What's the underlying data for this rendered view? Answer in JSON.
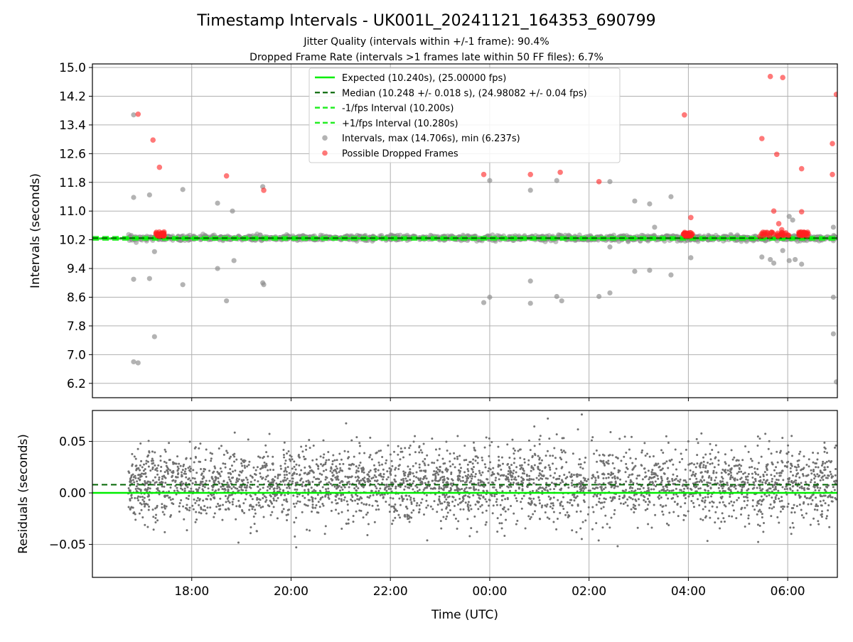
{
  "figure": {
    "title": "Timestamp Intervals - UK001L_20241121_164353_690799",
    "subtitle_1": "Jitter Quality (intervals within +/-1 frame): 90.4%",
    "subtitle_2": "Dropped Frame Rate (intervals >1 frames late within 50 FF files): 6.7%"
  },
  "colors": {
    "expected": "#00ee00",
    "median": "#006400",
    "interval_band": "#22ee22",
    "scatter": "#8a8a8a",
    "dropped": "#ff2020",
    "grid": "#b0b0b0"
  },
  "chart_data": [
    {
      "type": "scatter",
      "ylabel": "Intervals (seconds)",
      "ylim": [
        5.8,
        15.1
      ],
      "yticks": [
        6.2,
        7.0,
        7.8,
        8.6,
        9.4,
        10.2,
        11.0,
        11.8,
        12.6,
        13.4,
        14.2,
        15.0
      ],
      "xlim_hours": [
        16.0,
        31.0
      ],
      "grid": true,
      "legend_position": "upper center",
      "legend": [
        "Expected (10.240s), (25.00000 fps)",
        "Median (10.248 +/- 0.018 s), (24.98082 +/- 0.04 fps)",
        "-1/fps Interval (10.200s)",
        "+1/fps Interval (10.280s)",
        "Intervals, max (14.706s), min (6.237s)",
        "Possible Dropped Frames"
      ],
      "lines": {
        "expected": 10.24,
        "median": 10.248,
        "minus_one_fps": 10.2,
        "plus_one_fps": 10.28
      },
      "data_range_hours": [
        16.72,
        30.98
      ],
      "outliers": [
        {
          "t": 16.83,
          "v": 13.68
        },
        {
          "t": 16.83,
          "v": 11.38
        },
        {
          "t": 16.83,
          "v": 9.1
        },
        {
          "t": 16.83,
          "v": 6.8
        },
        {
          "t": 16.92,
          "v": 6.77
        },
        {
          "t": 17.15,
          "v": 11.45
        },
        {
          "t": 17.15,
          "v": 9.12
        },
        {
          "t": 17.25,
          "v": 7.5
        },
        {
          "t": 17.25,
          "v": 9.87
        },
        {
          "t": 17.82,
          "v": 11.6
        },
        {
          "t": 17.82,
          "v": 8.95
        },
        {
          "t": 18.52,
          "v": 11.22
        },
        {
          "t": 18.52,
          "v": 9.4
        },
        {
          "t": 18.7,
          "v": 8.5
        },
        {
          "t": 18.82,
          "v": 11.0
        },
        {
          "t": 18.85,
          "v": 9.62
        },
        {
          "t": 19.43,
          "v": 11.68
        },
        {
          "t": 19.43,
          "v": 9.0
        },
        {
          "t": 19.45,
          "v": 8.95
        },
        {
          "t": 23.88,
          "v": 8.45
        },
        {
          "t": 24.0,
          "v": 11.85
        },
        {
          "t": 24.0,
          "v": 8.6
        },
        {
          "t": 24.82,
          "v": 11.58
        },
        {
          "t": 24.82,
          "v": 9.05
        },
        {
          "t": 24.82,
          "v": 8.43
        },
        {
          "t": 25.35,
          "v": 11.85
        },
        {
          "t": 25.35,
          "v": 8.62
        },
        {
          "t": 25.45,
          "v": 8.5
        },
        {
          "t": 26.2,
          "v": 8.62
        },
        {
          "t": 26.42,
          "v": 11.82
        },
        {
          "t": 26.42,
          "v": 8.72
        },
        {
          "t": 26.42,
          "v": 10.0
        },
        {
          "t": 26.92,
          "v": 11.28
        },
        {
          "t": 26.92,
          "v": 9.32
        },
        {
          "t": 27.22,
          "v": 11.2
        },
        {
          "t": 27.22,
          "v": 9.35
        },
        {
          "t": 27.32,
          "v": 10.55
        },
        {
          "t": 27.65,
          "v": 11.4
        },
        {
          "t": 27.65,
          "v": 9.22
        },
        {
          "t": 28.05,
          "v": 9.7
        },
        {
          "t": 29.48,
          "v": 9.72
        },
        {
          "t": 29.65,
          "v": 9.65
        },
        {
          "t": 29.72,
          "v": 9.55
        },
        {
          "t": 29.9,
          "v": 9.9
        },
        {
          "t": 30.03,
          "v": 10.85
        },
        {
          "t": 30.03,
          "v": 9.62
        },
        {
          "t": 30.15,
          "v": 9.65
        },
        {
          "t": 30.1,
          "v": 10.75
        },
        {
          "t": 30.28,
          "v": 9.52
        },
        {
          "t": 30.92,
          "v": 10.55
        },
        {
          "t": 30.92,
          "v": 8.6
        },
        {
          "t": 30.92,
          "v": 7.58
        },
        {
          "t": 30.98,
          "v": 6.24
        }
      ],
      "dropped_frames": [
        {
          "t": 16.92,
          "v": 13.7
        },
        {
          "t": 17.22,
          "v": 12.98
        },
        {
          "t": 17.35,
          "v": 12.22
        },
        {
          "t": 18.7,
          "v": 11.98
        },
        {
          "t": 19.45,
          "v": 11.58
        },
        {
          "t": 23.88,
          "v": 12.02
        },
        {
          "t": 24.82,
          "v": 12.02
        },
        {
          "t": 25.42,
          "v": 12.08
        },
        {
          "t": 26.2,
          "v": 11.82
        },
        {
          "t": 27.92,
          "v": 13.68
        },
        {
          "t": 28.05,
          "v": 10.82
        },
        {
          "t": 29.48,
          "v": 13.02
        },
        {
          "t": 29.65,
          "v": 14.75
        },
        {
          "t": 29.72,
          "v": 11.0
        },
        {
          "t": 29.78,
          "v": 12.58
        },
        {
          "t": 29.9,
          "v": 14.72
        },
        {
          "t": 29.82,
          "v": 10.65
        },
        {
          "t": 29.88,
          "v": 10.48
        },
        {
          "t": 30.28,
          "v": 12.18
        },
        {
          "t": 30.28,
          "v": 10.98
        },
        {
          "t": 30.9,
          "v": 12.88
        },
        {
          "t": 30.9,
          "v": 12.02
        },
        {
          "t": 30.98,
          "v": 14.25
        }
      ],
      "dropped_clusters_hours": [
        [
          17.28,
          17.45
        ],
        [
          27.9,
          28.08
        ],
        [
          29.42,
          30.05
        ],
        [
          30.22,
          30.42
        ]
      ]
    },
    {
      "type": "scatter",
      "ylabel": "Residuals (seconds)",
      "xlabel": "Time (UTC)",
      "ylim": [
        -0.082,
        0.08
      ],
      "yticks": [
        0.05,
        0.0,
        -0.05
      ],
      "ytick_labels": [
        "0.05",
        "0.00",
        "−0.05"
      ],
      "xlim_hours": [
        16.0,
        31.0
      ],
      "xticks_hours": [
        18,
        20,
        22,
        24,
        26,
        28,
        30
      ],
      "xtick_labels": [
        "18:00",
        "20:00",
        "22:00",
        "00:00",
        "02:00",
        "04:00",
        "06:00"
      ],
      "grid": true,
      "lines": {
        "expected": 0.0,
        "median": 0.008
      },
      "residual_sd": 0.018,
      "data_range_hours": [
        16.72,
        30.98
      ]
    }
  ]
}
